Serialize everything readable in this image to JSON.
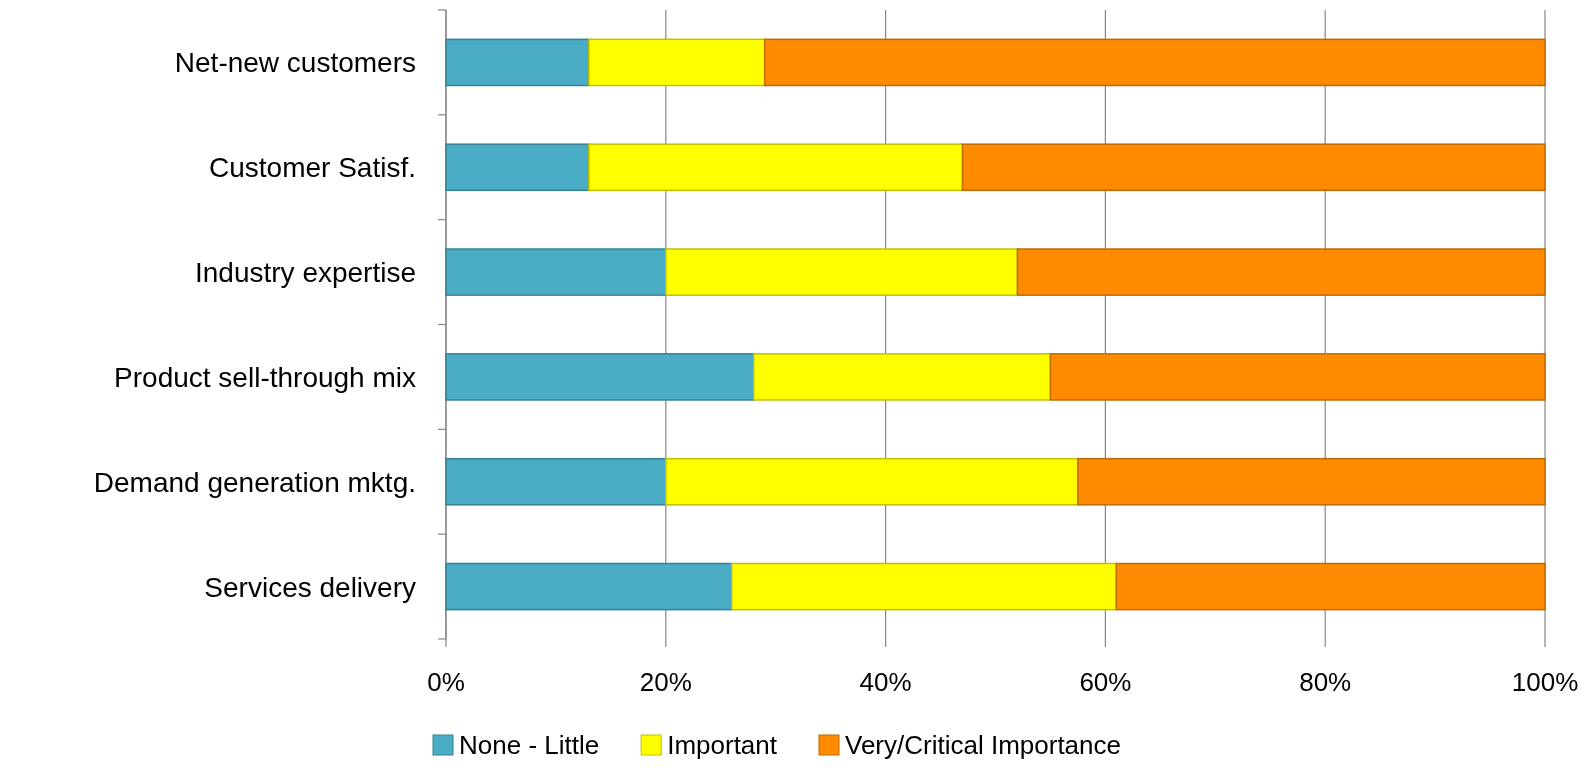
{
  "chart_data": {
    "type": "bar",
    "orientation": "horizontal",
    "stacked": true,
    "categories": [
      "Net-new customers",
      "Customer Satisf.",
      "Industry expertise",
      "Product sell-through mix",
      "Demand generation mktg.",
      "Services delivery"
    ],
    "series": [
      {
        "name": "None - Little",
        "color": "#4bacc6",
        "values": [
          13,
          13,
          20,
          28,
          20,
          26
        ]
      },
      {
        "name": "Important",
        "color": "#ffff00",
        "values": [
          16,
          34,
          32,
          27,
          37.5,
          35
        ]
      },
      {
        "name": "Very/Critical Importance",
        "color": "#ff8c00",
        "values": [
          71,
          53,
          48,
          45,
          42.5,
          39
        ]
      }
    ],
    "xlim": [
      0,
      100
    ],
    "xticks": [
      {
        "value": 0,
        "label": "0%"
      },
      {
        "value": 20,
        "label": "20%"
      },
      {
        "value": 40,
        "label": "40%"
      },
      {
        "value": 60,
        "label": "60%"
      },
      {
        "value": 80,
        "label": "80%"
      },
      {
        "value": 100,
        "label": "100%"
      }
    ],
    "grid": "x",
    "legend": "bottom"
  }
}
